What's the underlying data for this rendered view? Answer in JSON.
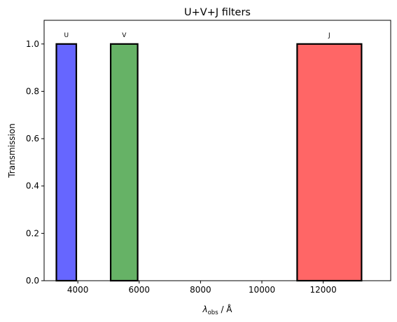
{
  "chart_data": {
    "type": "bar",
    "title": "U+V+J filters",
    "xlabel": {
      "symbol": "λ",
      "subscript": "obs",
      "unit": " / Å"
    },
    "ylabel": "Transmission",
    "xlim": [
      2900,
      14200
    ],
    "ylim": [
      0.0,
      1.1
    ],
    "xticks": [
      {
        "value": 4000,
        "label": "4000"
      },
      {
        "value": 6000,
        "label": "6000"
      },
      {
        "value": 8000,
        "label": "8000"
      },
      {
        "value": 10000,
        "label": "10000"
      },
      {
        "value": 12000,
        "label": "12000"
      }
    ],
    "yticks": [
      {
        "value": 0.0,
        "label": "0.0"
      },
      {
        "value": 0.2,
        "label": "0.2"
      },
      {
        "value": 0.4,
        "label": "0.4"
      },
      {
        "value": 0.6,
        "label": "0.6"
      },
      {
        "value": 0.8,
        "label": "0.8"
      },
      {
        "value": 1.0,
        "label": "1.0"
      }
    ],
    "grid": false,
    "series": [
      {
        "name": "U",
        "x_start": 3300,
        "x_end": 3950,
        "transmission": 1.0,
        "color": "#6666ff"
      },
      {
        "name": "V",
        "x_start": 5070,
        "x_end": 5950,
        "transmission": 1.0,
        "color": "#66b266"
      },
      {
        "name": "J",
        "x_start": 11150,
        "x_end": 13250,
        "transmission": 1.0,
        "color": "#ff6666"
      }
    ]
  }
}
